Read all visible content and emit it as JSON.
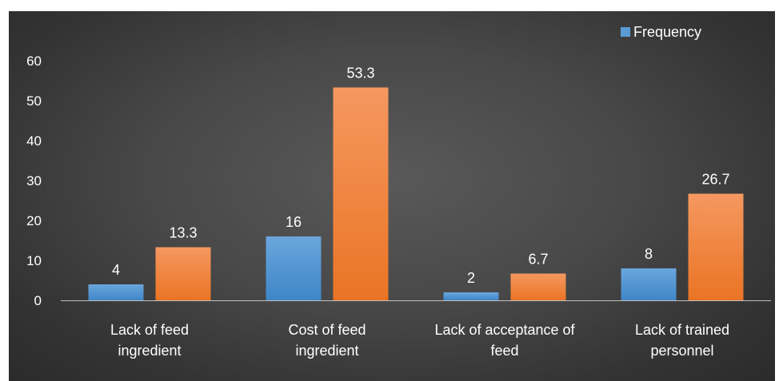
{
  "chart_data": {
    "type": "bar",
    "categories": [
      [
        "Lack of feed",
        "ingredient"
      ],
      [
        "Cost of feed",
        "ingredient"
      ],
      [
        "Lack of acceptance of",
        "feed"
      ],
      [
        "Lack of trained",
        "personnel"
      ]
    ],
    "series": [
      {
        "name": "Frequency",
        "values": [
          4,
          16,
          2,
          8
        ],
        "labels": [
          "4",
          "16",
          "2",
          "8"
        ],
        "color": "#5b9bd5",
        "color_dark": "#3d7fc0"
      },
      {
        "name": "",
        "values": [
          13.3,
          53.3,
          6.7,
          26.7
        ],
        "labels": [
          "13.3",
          "53.3",
          "6.7",
          "26.7"
        ],
        "color": "#f4874a",
        "color_dark": "#e8711f"
      }
    ],
    "ylim": [
      0,
      60
    ],
    "yticks": [
      "0",
      "10",
      "20",
      "30",
      "40",
      "50",
      "60"
    ],
    "legend": {
      "placement": "top-right",
      "entries": [
        "Frequency"
      ]
    },
    "grid": false,
    "title": "",
    "xlabel": "",
    "ylabel": ""
  }
}
